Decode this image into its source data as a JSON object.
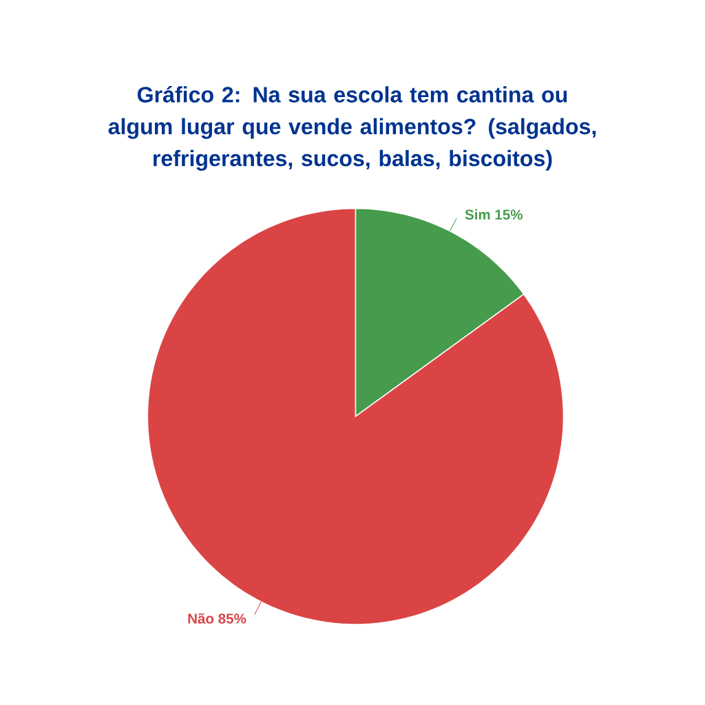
{
  "chart_data": {
    "type": "pie",
    "title": "Gráfico 2:   Na sua escola tem cantina ou algum lugar que vende alimentos? (salgados, refrigerantes, sucos, balas, biscoitos)",
    "categories": [
      "Sim",
      "Não"
    ],
    "values": [
      15,
      85
    ],
    "value_labels": [
      "15%",
      "85%"
    ],
    "colors": [
      "#469b4c",
      "#db4444"
    ]
  }
}
